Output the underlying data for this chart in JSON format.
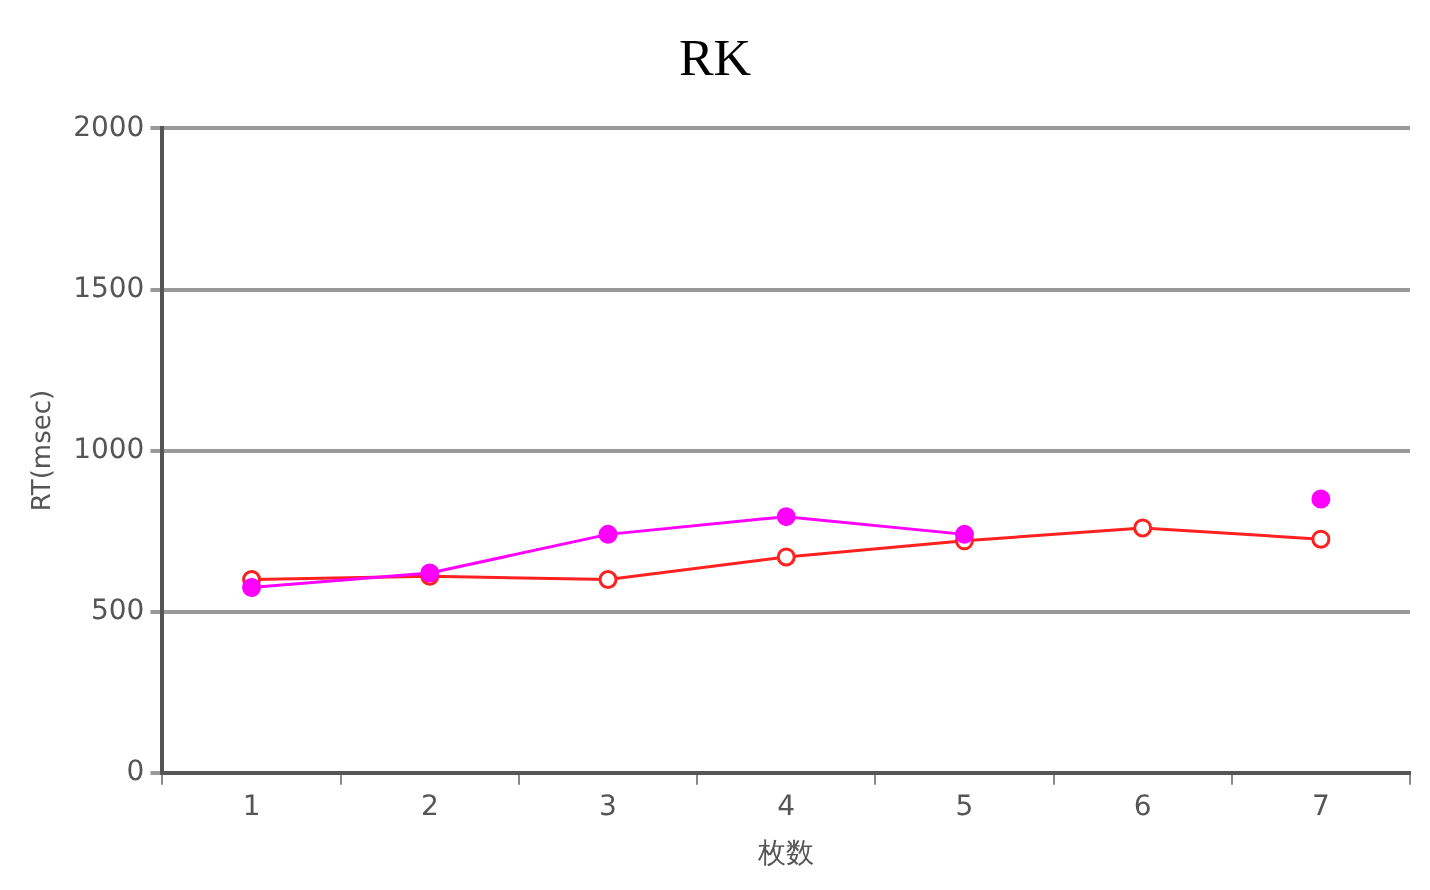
{
  "chart_data": {
    "type": "line",
    "title": "RK",
    "xlabel": "枚数",
    "ylabel": "RT(msec)",
    "categories": [
      "1",
      "2",
      "3",
      "4",
      "5",
      "6",
      "7"
    ],
    "series": [
      {
        "color": "#ff00ff",
        "values": [
          575,
          620,
          740,
          795,
          740,
          null,
          850
        ]
      },
      {
        "color": "#ff2020",
        "values": [
          600,
          610,
          600,
          670,
          720,
          760,
          725
        ]
      }
    ],
    "ylim": [
      0,
      2000
    ],
    "yticks": [
      0,
      500,
      1000,
      1500,
      2000
    ],
    "grid": "y",
    "marker": "circle",
    "line_style": "solid",
    "legend": false
  }
}
